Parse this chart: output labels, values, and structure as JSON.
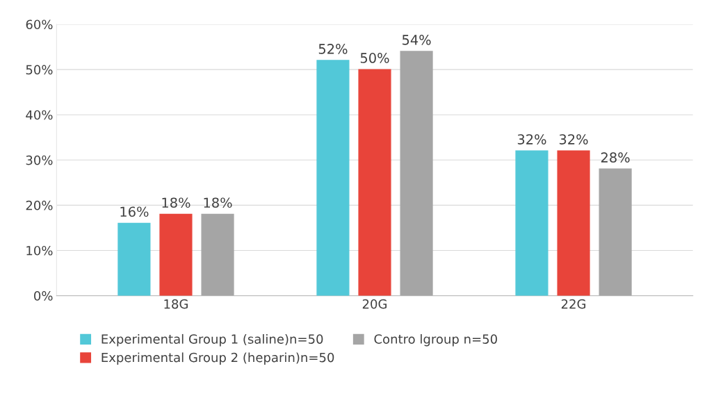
{
  "chart_data": {
    "type": "bar",
    "categories": [
      "18G",
      "20G",
      "22G"
    ],
    "series": [
      {
        "name": "Experimental Group 1 (saline)n=50",
        "color": "#52c8d8",
        "values": [
          16,
          52,
          32
        ],
        "value_labels": [
          "16%",
          "52%",
          "32%"
        ]
      },
      {
        "name": "Experimental Group 2 (heparin)n=50",
        "color": "#e8443a",
        "values": [
          18,
          50,
          32
        ],
        "value_labels": [
          "18%",
          "50%",
          "32%"
        ]
      },
      {
        "name": "Contro lgroup n=50",
        "color": "#a5a5a5",
        "values": [
          18,
          54,
          28
        ],
        "value_labels": [
          "18%",
          "54%",
          "28%"
        ]
      }
    ],
    "ylim": [
      0,
      60
    ],
    "yticks": [
      {
        "value": 0,
        "label": "0%"
      },
      {
        "value": 10,
        "label": "10%"
      },
      {
        "value": 20,
        "label": "20%"
      },
      {
        "value": 30,
        "label": "30%"
      },
      {
        "value": 40,
        "label": "40%"
      },
      {
        "value": 50,
        "label": "50%"
      },
      {
        "value": 60,
        "label": "60%"
      }
    ],
    "grid": "y",
    "legend": "bottom"
  }
}
